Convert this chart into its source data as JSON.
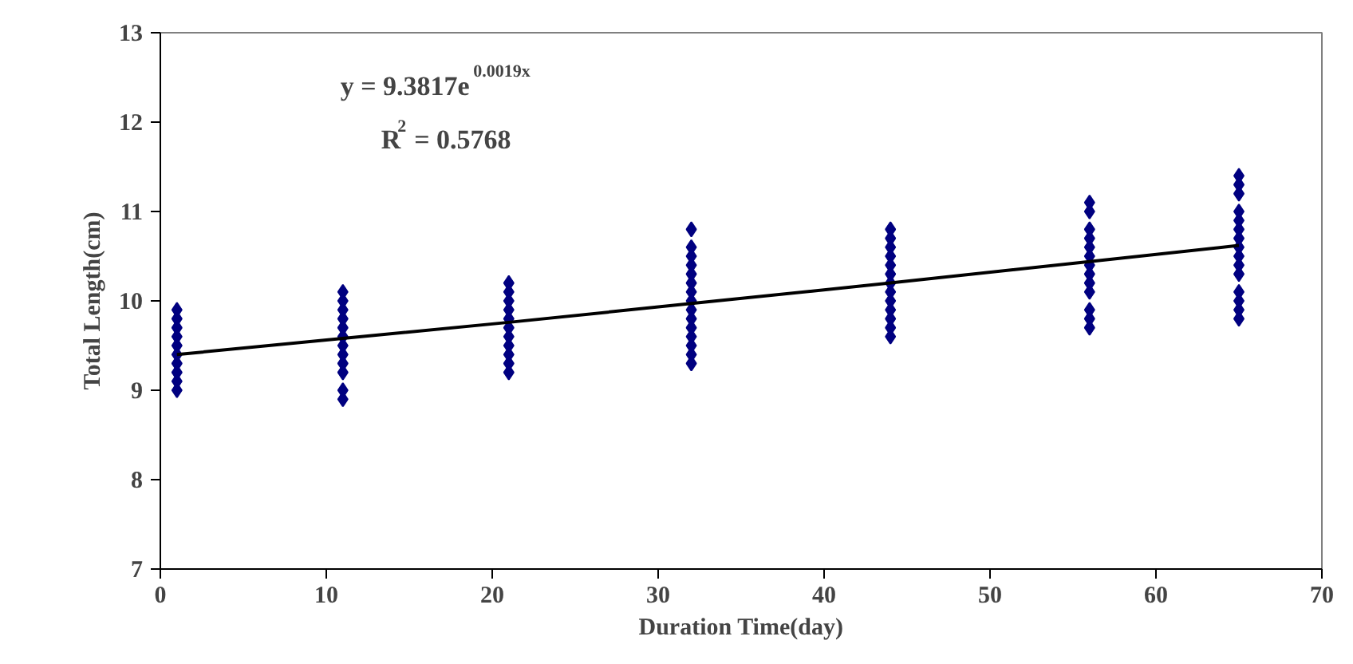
{
  "chart_data": {
    "type": "scatter",
    "xlabel": "Duration Time(day)",
    "ylabel": "Total Length(cm)",
    "xlim": [
      0,
      70
    ],
    "xticks": [
      0,
      10,
      20,
      30,
      40,
      50,
      60,
      70
    ],
    "ylim": [
      7,
      13
    ],
    "yticks": [
      7,
      8,
      9,
      10,
      11,
      12,
      13
    ],
    "grid": false,
    "annotations": [
      "y = 9.3817e$^{0.0019x}$",
      "R$^{2}$ = 0.5768"
    ],
    "series": [
      {
        "color": "#000080",
        "marker": "diamond",
        "x": [
          1,
          1,
          1,
          1,
          1,
          1,
          1,
          1,
          1,
          1,
          11,
          11,
          11,
          11,
          11,
          11,
          11,
          11,
          11,
          11,
          11,
          11,
          21,
          21,
          21,
          21,
          21,
          21,
          21,
          21,
          21,
          21,
          21,
          32,
          32,
          32,
          32,
          32,
          32,
          32,
          32,
          32,
          32,
          32,
          32,
          32,
          32,
          32,
          44,
          44,
          44,
          44,
          44,
          44,
          44,
          44,
          44,
          44,
          44,
          44,
          44,
          56,
          56,
          56,
          56,
          56,
          56,
          56,
          56,
          56,
          56,
          56,
          56,
          56,
          65,
          65,
          65,
          65,
          65,
          65,
          65,
          65,
          65,
          65,
          65,
          65,
          65,
          65,
          65
        ],
        "values": [
          9.0,
          9.1,
          9.2,
          9.3,
          9.4,
          9.5,
          9.6,
          9.7,
          9.8,
          9.9,
          8.9,
          9.0,
          9.2,
          9.3,
          9.4,
          9.5,
          9.6,
          9.7,
          9.8,
          9.9,
          10.0,
          10.1,
          9.2,
          9.3,
          9.4,
          9.5,
          9.6,
          9.7,
          9.8,
          9.9,
          10.0,
          10.1,
          10.2,
          9.3,
          9.4,
          9.5,
          9.6,
          9.7,
          9.8,
          9.9,
          10.0,
          10.1,
          10.2,
          10.3,
          10.4,
          10.5,
          10.6,
          10.8,
          9.6,
          9.7,
          9.8,
          9.9,
          10.0,
          10.1,
          10.2,
          10.3,
          10.4,
          10.5,
          10.6,
          10.7,
          10.8,
          9.7,
          9.8,
          9.9,
          10.1,
          10.2,
          10.3,
          10.4,
          10.5,
          10.6,
          10.7,
          10.8,
          11.0,
          11.1,
          9.8,
          9.9,
          10.0,
          10.1,
          10.3,
          10.4,
          10.5,
          10.6,
          10.7,
          10.8,
          10.9,
          11.0,
          11.2,
          11.3,
          11.4
        ]
      },
      {
        "type": "line",
        "color": "#000000",
        "line_style": "solid",
        "marker": "none",
        "x": [
          1,
          11,
          21,
          32,
          44,
          56,
          65
        ],
        "values": [
          9.4,
          9.58,
          9.76,
          9.97,
          10.2,
          10.44,
          10.62
        ]
      }
    ]
  }
}
